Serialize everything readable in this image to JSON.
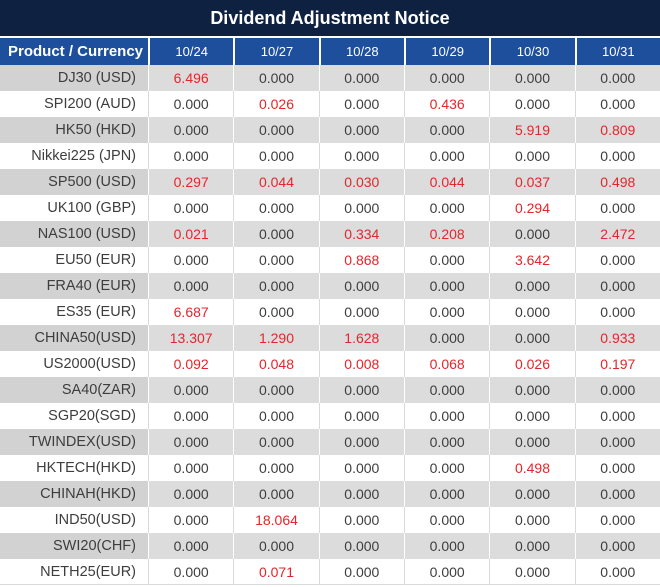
{
  "title": "Dividend Adjustment Notice",
  "colors": {
    "title_bg": "#0f2140",
    "header_bg": "#1d4f9c",
    "stripe_bg": "#dcdcdc",
    "stripe_label_bg": "#d2d2d2",
    "grid_line": "#d9d9d9",
    "text_color": "#3d3d3d",
    "red_value": "#e3262b",
    "header_text": "#ffffff"
  },
  "table": {
    "header": {
      "product_currency": "Product / Currency",
      "dates": [
        "10/24",
        "10/27",
        "10/28",
        "10/29",
        "10/30",
        "10/31"
      ]
    },
    "rows": [
      {
        "label": "DJ30 (USD)",
        "values": [
          "6.496",
          "0.000",
          "0.000",
          "0.000",
          "0.000",
          "0.000"
        ],
        "red_columns": [
          0
        ]
      },
      {
        "label": "SPI200 (AUD)",
        "values": [
          "0.000",
          "0.026",
          "0.000",
          "0.436",
          "0.000",
          "0.000"
        ],
        "red_columns": [
          1,
          3
        ]
      },
      {
        "label": "HK50 (HKD)",
        "values": [
          "0.000",
          "0.000",
          "0.000",
          "0.000",
          "5.919",
          "0.809"
        ],
        "red_columns": [
          4,
          5
        ]
      },
      {
        "label": "Nikkei225 (JPN)",
        "values": [
          "0.000",
          "0.000",
          "0.000",
          "0.000",
          "0.000",
          "0.000"
        ],
        "red_columns": []
      },
      {
        "label": "SP500 (USD)",
        "values": [
          "0.297",
          "0.044",
          "0.030",
          "0.044",
          "0.037",
          "0.498"
        ],
        "red_columns": [
          0,
          1,
          2,
          3,
          4,
          5
        ]
      },
      {
        "label": "UK100 (GBP)",
        "values": [
          "0.000",
          "0.000",
          "0.000",
          "0.000",
          "0.294",
          "0.000"
        ],
        "red_columns": [
          4
        ]
      },
      {
        "label": "NAS100 (USD)",
        "values": [
          "0.021",
          "0.000",
          "0.334",
          "0.208",
          "0.000",
          "2.472"
        ],
        "red_columns": [
          0,
          2,
          3,
          5
        ]
      },
      {
        "label": "EU50 (EUR)",
        "values": [
          "0.000",
          "0.000",
          "0.868",
          "0.000",
          "3.642",
          "0.000"
        ],
        "red_columns": [
          2,
          4
        ]
      },
      {
        "label": "FRA40 (EUR)",
        "values": [
          "0.000",
          "0.000",
          "0.000",
          "0.000",
          "0.000",
          "0.000"
        ],
        "red_columns": []
      },
      {
        "label": "ES35 (EUR)",
        "values": [
          "6.687",
          "0.000",
          "0.000",
          "0.000",
          "0.000",
          "0.000"
        ],
        "red_columns": [
          0
        ]
      },
      {
        "label": "CHINA50(USD)",
        "values": [
          "13.307",
          "1.290",
          "1.628",
          "0.000",
          "0.000",
          "0.933"
        ],
        "red_columns": [
          0,
          1,
          2,
          5
        ]
      },
      {
        "label": "US2000(USD)",
        "values": [
          "0.092",
          "0.048",
          "0.008",
          "0.068",
          "0.026",
          "0.197"
        ],
        "red_columns": [
          0,
          1,
          2,
          3,
          4,
          5
        ]
      },
      {
        "label": "SA40(ZAR)",
        "values": [
          "0.000",
          "0.000",
          "0.000",
          "0.000",
          "0.000",
          "0.000"
        ],
        "red_columns": []
      },
      {
        "label": "SGP20(SGD)",
        "values": [
          "0.000",
          "0.000",
          "0.000",
          "0.000",
          "0.000",
          "0.000"
        ],
        "red_columns": []
      },
      {
        "label": "TWINDEX(USD)",
        "values": [
          "0.000",
          "0.000",
          "0.000",
          "0.000",
          "0.000",
          "0.000"
        ],
        "red_columns": []
      },
      {
        "label": "HKTECH(HKD)",
        "values": [
          "0.000",
          "0.000",
          "0.000",
          "0.000",
          "0.498",
          "0.000"
        ],
        "red_columns": [
          4
        ]
      },
      {
        "label": "CHINAH(HKD)",
        "values": [
          "0.000",
          "0.000",
          "0.000",
          "0.000",
          "0.000",
          "0.000"
        ],
        "red_columns": []
      },
      {
        "label": "IND50(USD)",
        "values": [
          "0.000",
          "18.064",
          "0.000",
          "0.000",
          "0.000",
          "0.000"
        ],
        "red_columns": [
          1
        ]
      },
      {
        "label": "SWI20(CHF)",
        "values": [
          "0.000",
          "0.000",
          "0.000",
          "0.000",
          "0.000",
          "0.000"
        ],
        "red_columns": []
      },
      {
        "label": "NETH25(EUR)",
        "values": [
          "0.000",
          "0.071",
          "0.000",
          "0.000",
          "0.000",
          "0.000"
        ],
        "red_columns": [
          1
        ]
      }
    ]
  }
}
